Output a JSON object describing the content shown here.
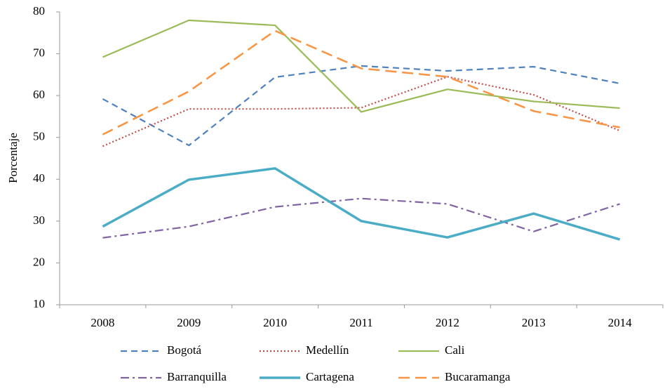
{
  "chart_data": {
    "type": "line",
    "y_label": "Porcentaje",
    "x": [
      "2008",
      "2009",
      "2010",
      "2011",
      "2012",
      "2013",
      "2014"
    ],
    "ylim": [
      10,
      80
    ],
    "yticks": [
      10,
      20,
      30,
      40,
      50,
      60,
      70,
      80
    ],
    "grid": false,
    "legend": "bottom",
    "series": [
      {
        "name": "Bogotá",
        "color": "#4f81bd",
        "style": "dashed",
        "values": [
          59.2,
          48.1,
          64.4,
          67.1,
          65.9,
          66.9,
          62.9
        ]
      },
      {
        "name": "Medellín",
        "color": "#c0504d",
        "style": "dotted",
        "values": [
          47.9,
          56.8,
          56.8,
          57.1,
          64.5,
          60.2,
          51.6
        ]
      },
      {
        "name": "Cali",
        "color": "#9bbb59",
        "style": "solid",
        "values": [
          69.2,
          78.0,
          76.8,
          56.1,
          61.5,
          58.6,
          57.0
        ]
      },
      {
        "name": "Barranquilla",
        "color": "#8064a2",
        "style": "dashdot",
        "values": [
          26.0,
          28.7,
          33.4,
          35.4,
          34.1,
          27.5,
          34.1
        ]
      },
      {
        "name": "Cartagena",
        "color": "#4bacc6",
        "style": "thick",
        "values": [
          28.7,
          39.9,
          42.6,
          30.0,
          26.1,
          31.8,
          25.6
        ]
      },
      {
        "name": "Bucaramanga",
        "color": "#f79646",
        "style": "longdash",
        "values": [
          50.7,
          61.0,
          75.5,
          66.5,
          64.5,
          56.3,
          52.4
        ]
      }
    ]
  }
}
